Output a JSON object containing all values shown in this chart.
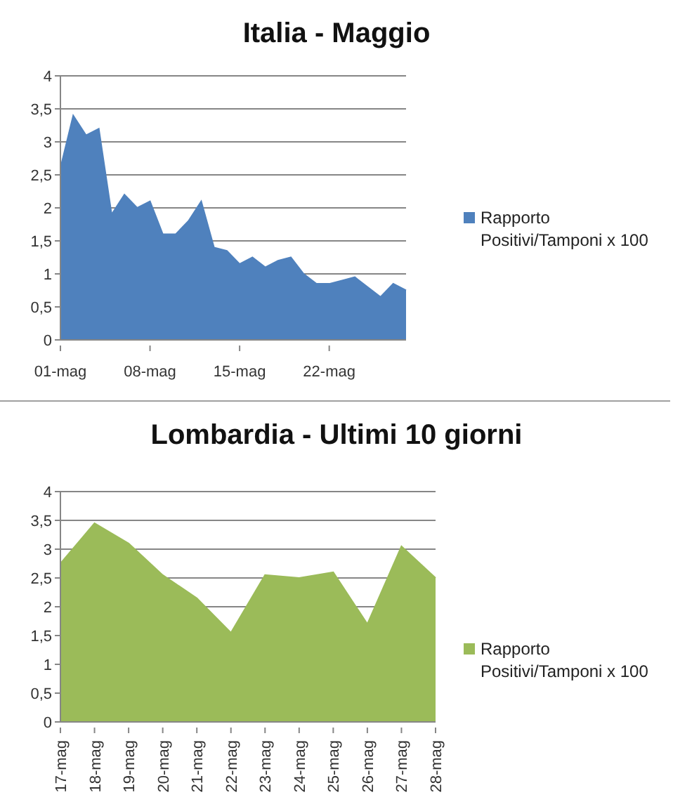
{
  "chart_data": [
    {
      "type": "area",
      "title": "Italia - Maggio",
      "categories": [
        "01-mag",
        null,
        null,
        null,
        null,
        null,
        null,
        "08-mag",
        null,
        null,
        null,
        null,
        null,
        null,
        "15-mag",
        null,
        null,
        null,
        null,
        null,
        null,
        "22-mag",
        null,
        null,
        null,
        null,
        null,
        null
      ],
      "series": [
        {
          "name": "Rapporto Positivi/Tamponi x 100",
          "color": "#4f81bd",
          "values": [
            2.6,
            3.4,
            3.1,
            3.2,
            1.9,
            2.2,
            2.0,
            2.1,
            1.6,
            1.6,
            1.8,
            2.1,
            1.4,
            1.35,
            1.15,
            1.25,
            1.1,
            1.2,
            1.25,
            1.0,
            0.85,
            0.85,
            0.9,
            0.95,
            0.8,
            0.65,
            0.85,
            0.75
          ]
        }
      ],
      "ylim": [
        0,
        4
      ],
      "yticks": [
        0,
        {
          "value": 0.5,
          "label": "0,5"
        },
        1,
        {
          "value": 1.5,
          "label": "1,5"
        },
        2,
        {
          "value": 2.5,
          "label": "2,5"
        },
        3,
        {
          "value": 3.5,
          "label": "3,5"
        },
        4
      ],
      "grid": "y",
      "legend": "right"
    },
    {
      "type": "area",
      "title": "Lombardia - Ultimi 10 giorni",
      "categories": [
        "17-mag",
        "18-mag",
        "19-mag",
        "20-mag",
        "21-mag",
        "22-mag",
        "23-mag",
        "24-mag",
        "25-mag",
        "26-mag",
        "27-mag",
        "28-mag"
      ],
      "series": [
        {
          "name": "Rapporto Positivi/Tamponi x 100",
          "color": "#9bbb59",
          "values": [
            2.75,
            3.45,
            3.1,
            2.55,
            2.15,
            1.55,
            2.55,
            2.5,
            2.6,
            1.7,
            3.05,
            2.5
          ]
        }
      ],
      "ylim": [
        0,
        4
      ],
      "yticks": [
        0,
        {
          "value": 0.5,
          "label": "0,5"
        },
        1,
        {
          "value": 1.5,
          "label": "1,5"
        },
        2,
        {
          "value": 2.5,
          "label": "2,5"
        },
        3,
        {
          "value": 3.5,
          "label": "3,5"
        },
        4
      ],
      "grid": "y",
      "legend": "right"
    }
  ]
}
